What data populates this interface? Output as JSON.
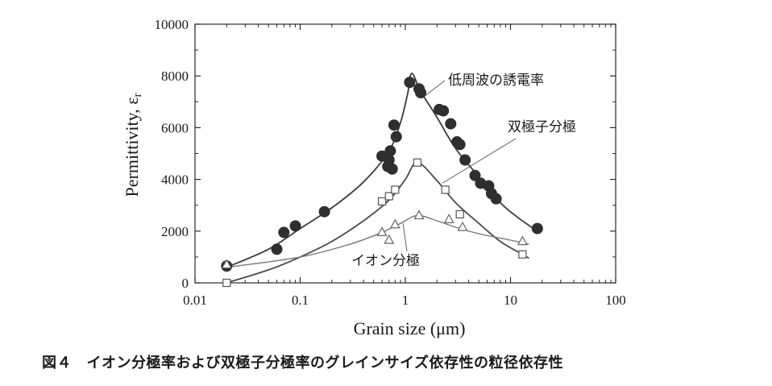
{
  "chart_data": {
    "type": "scatter",
    "xscale": "log",
    "xlim": [
      0.01,
      100
    ],
    "ylim": [
      0,
      10000
    ],
    "xlabel": "Grain size (μm)",
    "ylabel": "Permittivity, ε",
    "ylabel_sub": "r",
    "x_ticks": [
      {
        "value": 0.01,
        "label": "0.01"
      },
      {
        "value": 0.1,
        "label": "0.1"
      },
      {
        "value": 1,
        "label": "1"
      },
      {
        "value": 10,
        "label": "10"
      },
      {
        "value": 100,
        "label": "100"
      }
    ],
    "y_ticks": [
      {
        "value": 0,
        "label": "0"
      },
      {
        "value": 2000,
        "label": "2000"
      },
      {
        "value": 4000,
        "label": "4000"
      },
      {
        "value": 6000,
        "label": "6000"
      },
      {
        "value": 8000,
        "label": "8000"
      },
      {
        "value": 10000,
        "label": "10000"
      }
    ],
    "series": [
      {
        "name": "低周波の誘電率",
        "marker": "filled-circle",
        "color": "#3a3a3a",
        "points": [
          [
            0.02,
            650
          ],
          [
            0.06,
            1300
          ],
          [
            0.07,
            1950
          ],
          [
            0.09,
            2200
          ],
          [
            0.17,
            2750
          ],
          [
            0.6,
            4900
          ],
          [
            0.68,
            4500
          ],
          [
            0.7,
            4750
          ],
          [
            0.72,
            5100
          ],
          [
            0.75,
            4400
          ],
          [
            0.78,
            6100
          ],
          [
            0.82,
            5650
          ],
          [
            1.1,
            7750
          ],
          [
            1.35,
            7500
          ],
          [
            1.4,
            7350
          ],
          [
            2.1,
            6700
          ],
          [
            2.3,
            6650
          ],
          [
            2.7,
            6150
          ],
          [
            3.1,
            5450
          ],
          [
            3.3,
            5350
          ],
          [
            3.7,
            4750
          ],
          [
            4.6,
            4150
          ],
          [
            5.2,
            3850
          ],
          [
            6.2,
            3750
          ],
          [
            6.6,
            3450
          ],
          [
            7.3,
            3250
          ],
          [
            18,
            2100
          ]
        ],
        "fit": [
          [
            0.02,
            600
          ],
          [
            0.05,
            1300
          ],
          [
            0.1,
            2100
          ],
          [
            0.2,
            2900
          ],
          [
            0.4,
            3900
          ],
          [
            0.7,
            5100
          ],
          [
            0.9,
            6200
          ],
          [
            1.05,
            7300
          ],
          [
            1.15,
            8100
          ],
          [
            1.4,
            7400
          ],
          [
            2,
            6400
          ],
          [
            3,
            5200
          ],
          [
            5,
            4100
          ],
          [
            8,
            3100
          ],
          [
            12,
            2500
          ],
          [
            18,
            2000
          ]
        ]
      },
      {
        "name": "双極子分極",
        "marker": "open-square",
        "color": "#4a4a4a",
        "points": [
          [
            0.02,
            0
          ],
          [
            0.6,
            3150
          ],
          [
            0.7,
            3350
          ],
          [
            0.8,
            3600
          ],
          [
            1.3,
            4650
          ],
          [
            2.4,
            3600
          ],
          [
            3.3,
            2650
          ],
          [
            13,
            1100
          ]
        ],
        "fit": [
          [
            0.02,
            0
          ],
          [
            0.05,
            500
          ],
          [
            0.1,
            1000
          ],
          [
            0.2,
            1600
          ],
          [
            0.4,
            2400
          ],
          [
            0.7,
            3200
          ],
          [
            1.0,
            4000
          ],
          [
            1.3,
            4650
          ],
          [
            2,
            3950
          ],
          [
            3,
            3100
          ],
          [
            5,
            2300
          ],
          [
            8,
            1600
          ],
          [
            13,
            1100
          ],
          [
            15,
            950
          ]
        ]
      },
      {
        "name": "イオン分極",
        "marker": "open-triangle",
        "color": "#777777",
        "points": [
          [
            0.02,
            700
          ],
          [
            0.6,
            1950
          ],
          [
            0.7,
            1650
          ],
          [
            0.8,
            2250
          ],
          [
            1.35,
            2600
          ],
          [
            2.6,
            2450
          ],
          [
            3.5,
            2150
          ],
          [
            13,
            1600
          ]
        ],
        "fit": [
          [
            0.02,
            600
          ],
          [
            0.1,
            1000
          ],
          [
            0.3,
            1500
          ],
          [
            0.6,
            1950
          ],
          [
            0.9,
            2300
          ],
          [
            1.3,
            2600
          ],
          [
            2,
            2400
          ],
          [
            3,
            2150
          ],
          [
            5,
            1900
          ],
          [
            10,
            1650
          ],
          [
            15,
            1500
          ]
        ]
      }
    ],
    "annotations": [
      {
        "text": "低周波の誘電率",
        "series": 0
      },
      {
        "text": "双極子分極",
        "series": 1
      },
      {
        "text": "イオン分極",
        "series": 2
      }
    ],
    "grid": false,
    "legend": "none"
  },
  "caption": "図４　イオン分極率および双極子分極率のグレインサイズ依存性の粒径依存性"
}
